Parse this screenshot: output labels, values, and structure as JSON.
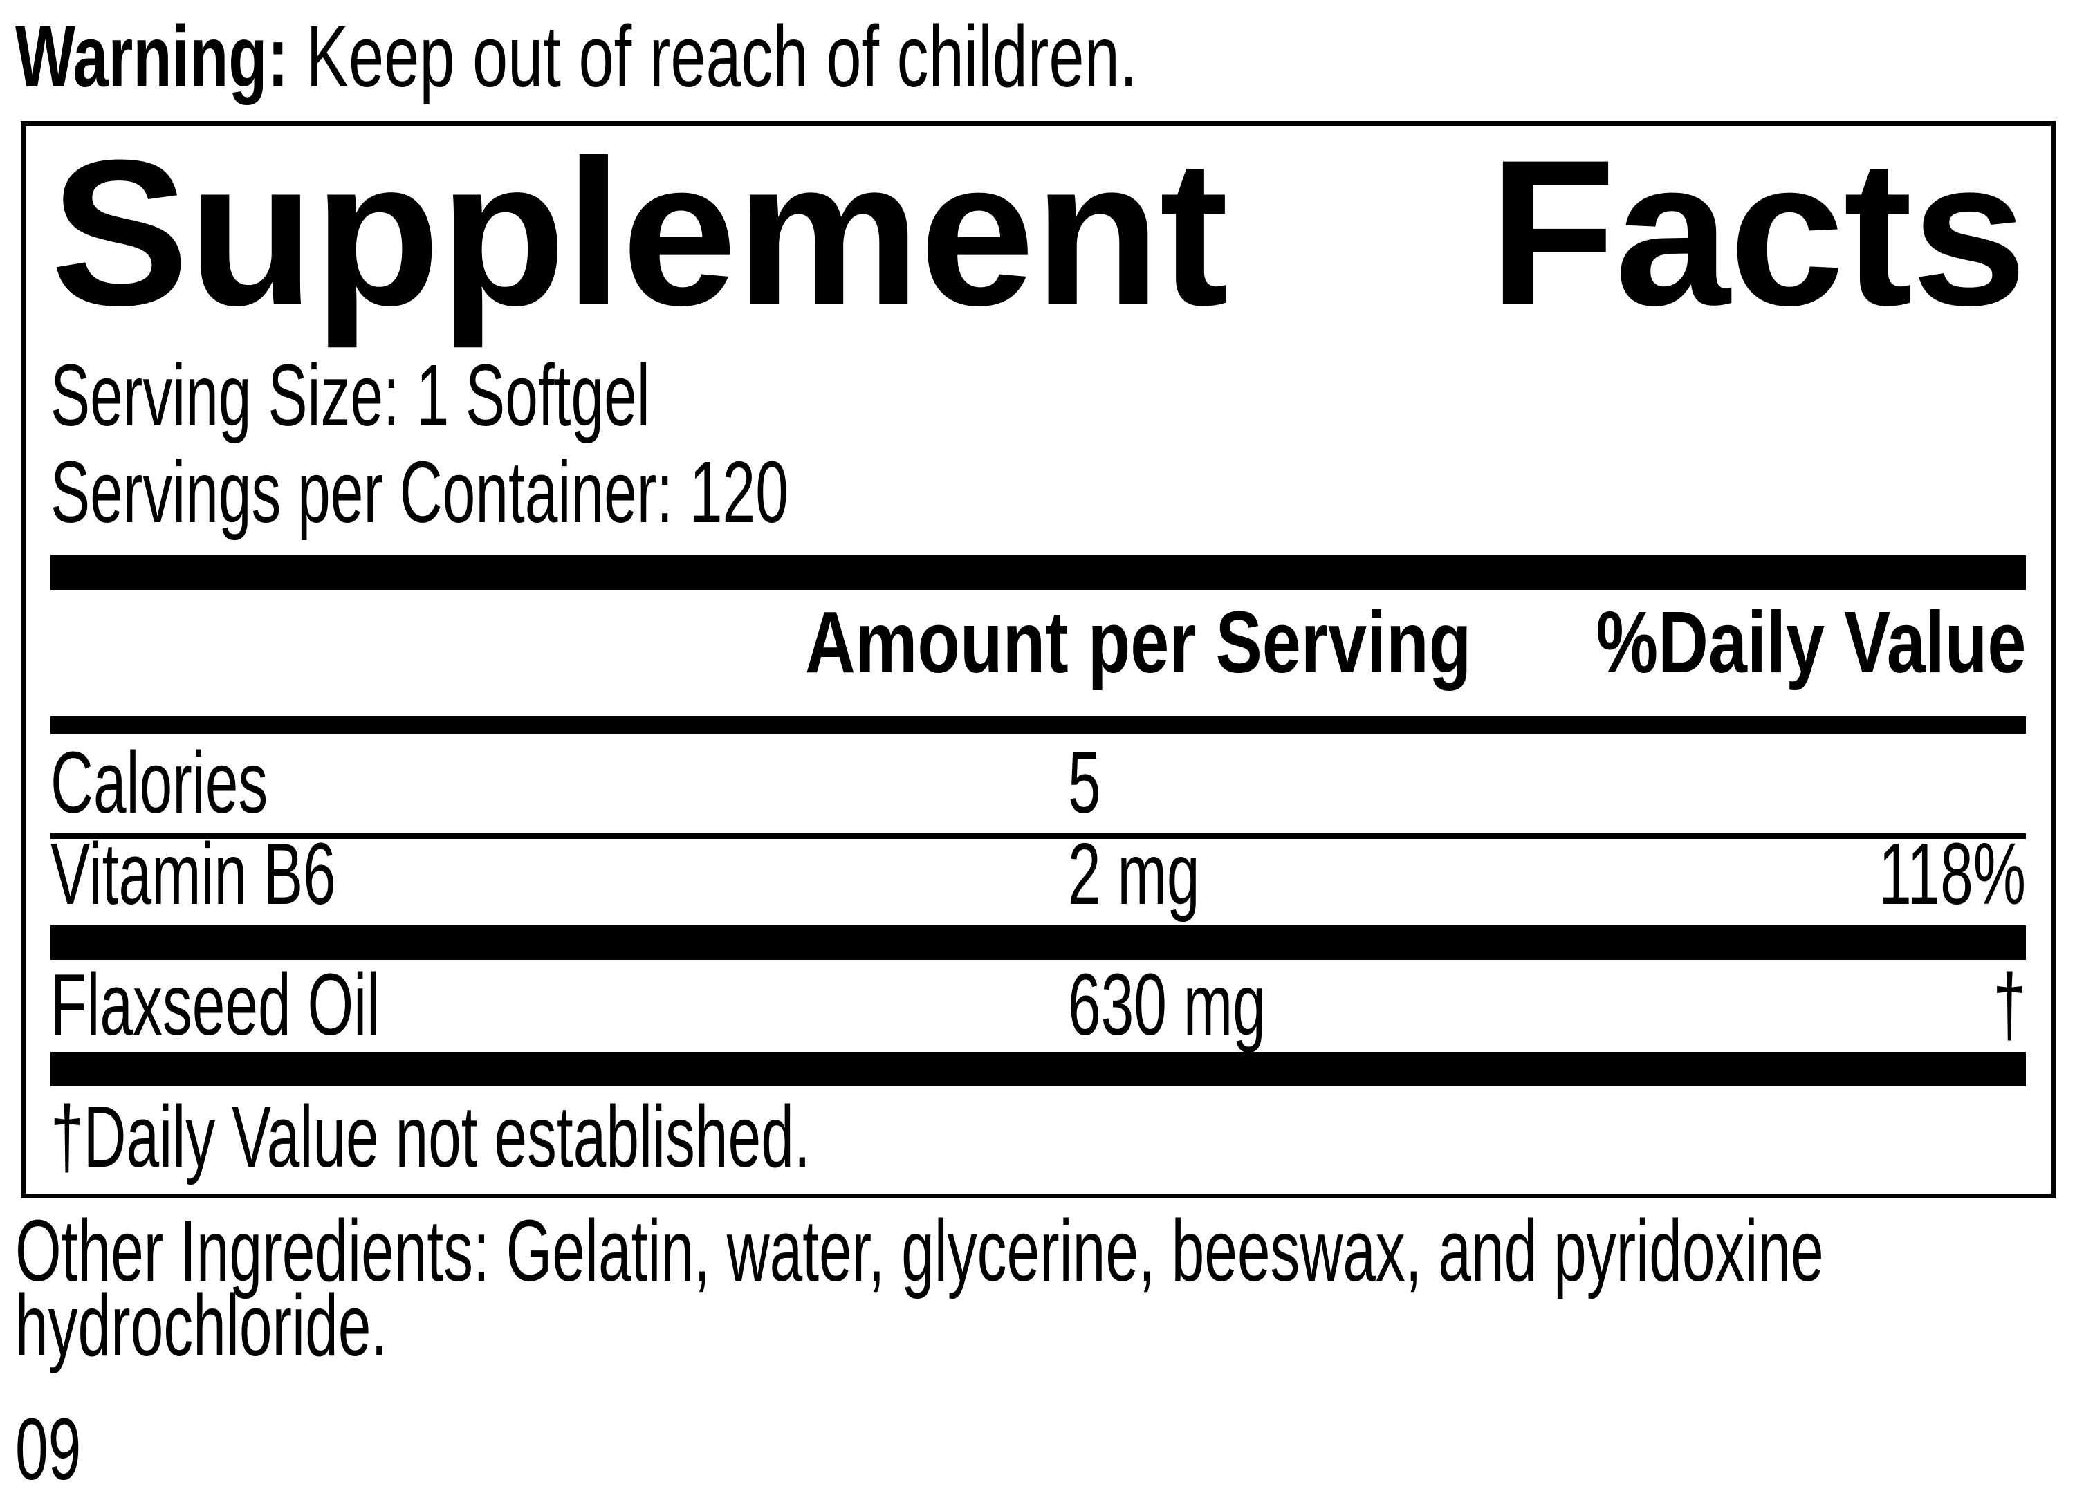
{
  "warning": {
    "label": "Warning:",
    "text": "Keep out of reach of children."
  },
  "panel": {
    "title_words": [
      "Supplement",
      "Facts"
    ],
    "serving_lines": [
      "Serving Size: 1 Softgel",
      "Servings per Container: 120"
    ],
    "header": {
      "amount_label": "Amount per Serving",
      "dv_label": "%Daily Value"
    },
    "rows": [
      {
        "name": "Calories",
        "amount": "5",
        "dv": ""
      },
      {
        "name": "Vitamin B6",
        "amount": "2 mg",
        "dv": "118%"
      },
      {
        "name": "Flaxseed Oil",
        "amount": "630 mg",
        "dv": "†"
      }
    ],
    "footnote": "†Daily Value not established."
  },
  "other_ingredients": {
    "lines": [
      "Other Ingredients: Gelatin, water, glycerine, beeswax, and pyridoxine",
      "hydrochloride."
    ]
  },
  "footer_code": "09",
  "colors": {
    "ink": "#000000",
    "background": "#ffffff"
  }
}
